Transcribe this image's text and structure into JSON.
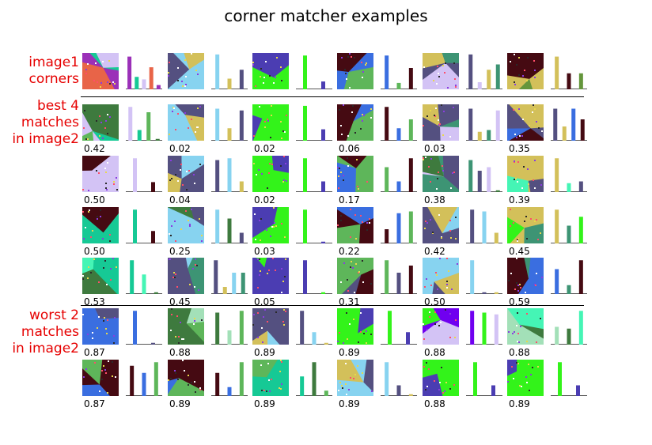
{
  "title": "corner matcher examples",
  "row_labels": {
    "query": [
      "image1",
      "corners"
    ],
    "best": [
      "best 4",
      "matches",
      "in image2"
    ],
    "worst": [
      "worst 2",
      "matches",
      "in image2"
    ]
  },
  "palette": {
    "purple": "#9b30b8",
    "teal": "#16c995",
    "lavender": "#d3c3f5",
    "orange": "#e86448",
    "lightblue": "#87d3f0",
    "khaki": "#d3c05a",
    "slate": "#545080",
    "green": "#33f31a",
    "indigo": "#4b3db2",
    "blue": "#3a6ee0",
    "darkred": "#450a12",
    "midgreen": "#5eb65a",
    "olive": "#64963c",
    "darkgreen": "#3e7a3e",
    "sea": "#3d9474",
    "mint": "#45f5b5",
    "paleg": "#a3e0b8",
    "violet": "#7000f0",
    "deeppurple": "#3d1f9c",
    "pink": "#e070a0"
  },
  "chart_data": {
    "type": "image-grid-with-histograms",
    "title": "corner matcher examples",
    "columns": 6,
    "query_row": [
      {
        "colors": [
          "purple",
          "teal",
          "lavender",
          "orange"
        ],
        "hist": [
          0.92,
          0.35,
          0.28,
          0.62,
          0.12
        ]
      },
      {
        "colors": [
          "lightblue",
          "khaki",
          "slate"
        ],
        "hist": [
          0.98,
          0.3,
          0.55
        ]
      },
      {
        "colors": [
          "green",
          "indigo"
        ],
        "hist": [
          0.95,
          0.22
        ]
      },
      {
        "colors": [
          "blue",
          "midgreen",
          "darkred"
        ],
        "hist": [
          0.95,
          0.18,
          0.6
        ]
      },
      {
        "colors": [
          "slate",
          "lavender",
          "khaki",
          "sea"
        ],
        "hist": [
          0.98,
          0.2,
          0.55,
          0.7
        ]
      },
      {
        "colors": [
          "khaki",
          "darkred",
          "olive"
        ],
        "hist": [
          0.92,
          0.45,
          0.45
        ]
      }
    ],
    "best_rows": [
      [
        {
          "score": "0.42",
          "colors": [
            "lavender",
            "teal",
            "midgreen",
            "darkgreen"
          ],
          "hist": [
            0.95,
            0.3,
            0.8,
            0.05
          ]
        },
        {
          "score": "0.02",
          "colors": [
            "lightblue",
            "khaki",
            "slate"
          ],
          "hist": [
            0.9,
            0.35,
            0.85
          ]
        },
        {
          "score": "0.02",
          "colors": [
            "green",
            "indigo"
          ],
          "hist": [
            0.98,
            0.32
          ]
        },
        {
          "score": "0.06",
          "colors": [
            "darkred",
            "blue",
            "midgreen"
          ],
          "hist": [
            0.95,
            0.35,
            0.6
          ]
        },
        {
          "score": "0.03",
          "colors": [
            "slate",
            "khaki",
            "sea",
            "lavender"
          ],
          "hist": [
            0.9,
            0.25,
            0.3,
            0.85
          ]
        },
        {
          "score": "0.35",
          "colors": [
            "slate",
            "khaki",
            "blue",
            "darkred"
          ],
          "hist": [
            0.9,
            0.4,
            0.9,
            0.6
          ]
        }
      ],
      [
        {
          "score": "0.50",
          "colors": [
            "lavender",
            "darkred"
          ],
          "hist": [
            0.95,
            0.28
          ]
        },
        {
          "score": "0.04",
          "colors": [
            "slate",
            "lightblue",
            "khaki"
          ],
          "hist": [
            0.9,
            0.95,
            0.3
          ]
        },
        {
          "score": "0.02",
          "colors": [
            "green",
            "indigo"
          ],
          "hist": [
            0.95,
            0.3
          ]
        },
        {
          "score": "0.17",
          "colors": [
            "midgreen",
            "blue",
            "darkred"
          ],
          "hist": [
            0.7,
            0.3,
            0.95
          ]
        },
        {
          "score": "0.38",
          "colors": [
            "sea",
            "slate",
            "lavender",
            "darkgreen"
          ],
          "hist": [
            0.9,
            0.6,
            0.7,
            0.05
          ]
        },
        {
          "score": "0.39",
          "colors": [
            "khaki",
            "mint",
            "slate"
          ],
          "hist": [
            0.95,
            0.25,
            0.3
          ]
        }
      ],
      [
        {
          "score": "0.50",
          "colors": [
            "teal",
            "darkred"
          ],
          "hist": [
            0.95,
            0.35
          ]
        },
        {
          "score": "0.25",
          "colors": [
            "lightblue",
            "darkgreen",
            "slate"
          ],
          "hist": [
            0.95,
            0.7,
            0.3
          ]
        },
        {
          "score": "0.03",
          "colors": [
            "green",
            "indigo"
          ],
          "hist": [
            0.95,
            0.05
          ]
        },
        {
          "score": "0.22",
          "colors": [
            "darkred",
            "blue",
            "midgreen"
          ],
          "hist": [
            0.4,
            0.85,
            0.9
          ]
        },
        {
          "score": "0.42",
          "colors": [
            "slate",
            "lightblue",
            "khaki"
          ],
          "hist": [
            0.95,
            0.9,
            0.3
          ]
        },
        {
          "score": "0.45",
          "colors": [
            "khaki",
            "sea",
            "green"
          ],
          "hist": [
            0.95,
            0.5,
            0.75
          ]
        }
      ],
      [
        {
          "score": "0.53",
          "colors": [
            "teal",
            "mint",
            "darkgreen"
          ],
          "hist": [
            0.95,
            0.55,
            0.05
          ]
        },
        {
          "score": "0.45",
          "colors": [
            "slate",
            "khaki",
            "lightblue",
            "sea"
          ],
          "hist": [
            0.95,
            0.2,
            0.6,
            0.6
          ]
        },
        {
          "score": "0.05",
          "colors": [
            "indigo",
            "green"
          ],
          "hist": [
            0.95,
            0.05
          ]
        },
        {
          "score": "0.31",
          "colors": [
            "midgreen",
            "slate",
            "darkred"
          ],
          "hist": [
            0.95,
            0.6,
            0.8
          ]
        },
        {
          "score": "0.50",
          "colors": [
            "lightblue",
            "slate",
            "khaki"
          ],
          "hist": [
            0.95,
            0.05,
            0.05
          ]
        },
        {
          "score": "0.59",
          "colors": [
            "blue",
            "sea",
            "darkred"
          ],
          "hist": [
            0.7,
            0.25,
            0.95
          ]
        }
      ]
    ],
    "worst_rows": [
      [
        {
          "score": "0.87",
          "colors": [
            "blue",
            "slate"
          ],
          "hist": [
            0.95,
            0.05
          ]
        },
        {
          "score": "0.88",
          "colors": [
            "darkgreen",
            "paleg",
            "midgreen"
          ],
          "hist": [
            0.9,
            0.4,
            0.95
          ]
        },
        {
          "score": "0.89",
          "colors": [
            "slate",
            "lightblue",
            "khaki"
          ],
          "hist": [
            0.95,
            0.35,
            0.05
          ]
        },
        {
          "score": "0.89",
          "colors": [
            "green",
            "indigo"
          ],
          "hist": [
            0.95,
            0.35
          ]
        },
        {
          "score": "0.88",
          "colors": [
            "violet",
            "green",
            "lavender"
          ],
          "hist": [
            0.95,
            0.9,
            0.85
          ]
        },
        {
          "score": "0.88",
          "colors": [
            "paleg",
            "darkgreen",
            "mint"
          ],
          "hist": [
            0.5,
            0.45,
            0.95
          ]
        }
      ],
      [
        {
          "score": "0.87",
          "colors": [
            "darkred",
            "blue",
            "midgreen"
          ],
          "hist": [
            0.85,
            0.65,
            0.95
          ]
        },
        {
          "score": "0.89",
          "colors": [
            "darkred",
            "blue",
            "midgreen"
          ],
          "hist": [
            0.65,
            0.25,
            0.95
          ]
        },
        {
          "score": "0.89",
          "colors": [
            "teal",
            "darkgreen",
            "midgreen"
          ],
          "hist": [
            0.55,
            0.95,
            0.15
          ]
        },
        {
          "score": "0.89",
          "colors": [
            "lightblue",
            "slate",
            "khaki"
          ],
          "hist": [
            0.95,
            0.3,
            0.05
          ]
        },
        {
          "score": "0.88",
          "colors": [
            "green",
            "indigo"
          ],
          "hist": [
            0.95,
            0.3
          ]
        },
        {
          "score": "0.89",
          "colors": [
            "green",
            "indigo"
          ],
          "hist": [
            0.95,
            0.3
          ]
        }
      ]
    ]
  }
}
